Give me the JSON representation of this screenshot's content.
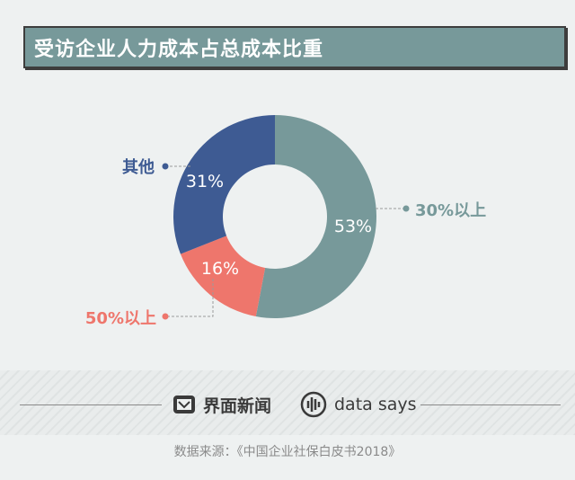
{
  "title": "受访企业人力成本占总成本比重",
  "chart_data": {
    "type": "pie",
    "donut": true,
    "slices": [
      {
        "label": "30%以上",
        "value": 53,
        "value_label": "53%",
        "color": "#77999a",
        "label_color": "#77999a"
      },
      {
        "label": "50%以上",
        "value": 16,
        "value_label": "16%",
        "color": "#ee766c",
        "label_color": "#ee766c"
      },
      {
        "label": "其他",
        "value": 31,
        "value_label": "31%",
        "color": "#3e5b93",
        "label_color": "#3e5b93"
      }
    ]
  },
  "footer": {
    "brand_cn": "界面新闻",
    "brand_en": "data says",
    "source": "数据来源：《中国企业社保白皮书2018》"
  },
  "icons": {
    "left": "jiemian-logo-icon",
    "right": "data-says-logo-icon"
  }
}
